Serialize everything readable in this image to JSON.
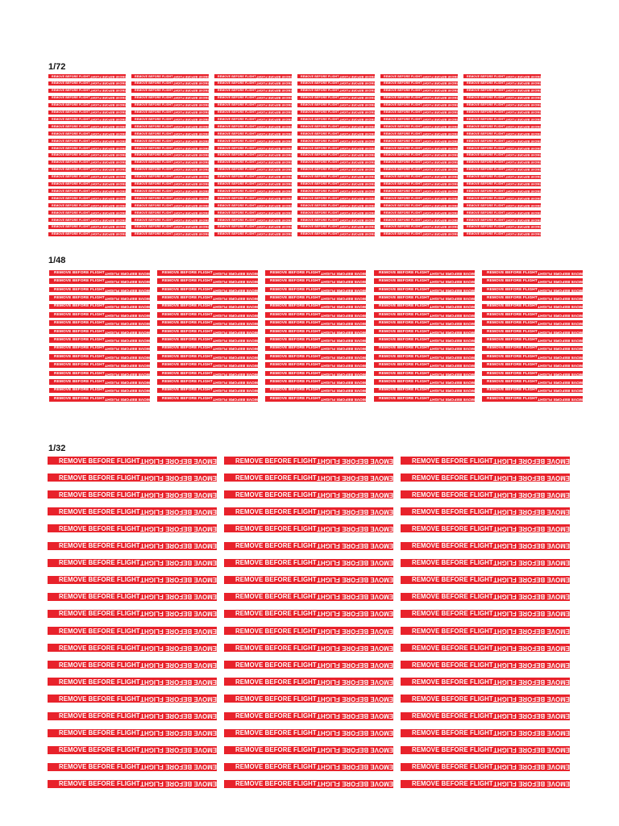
{
  "tag_text": "REMOVE BEFORE FLIGHT",
  "tag_color": "#e8222b",
  "sheets": [
    {
      "label": "1/72",
      "columns": 6,
      "rows": 23
    },
    {
      "label": "1/48",
      "columns": 5,
      "rows": 16
    },
    {
      "label": "1/32",
      "columns": 3,
      "rows": 20
    }
  ]
}
